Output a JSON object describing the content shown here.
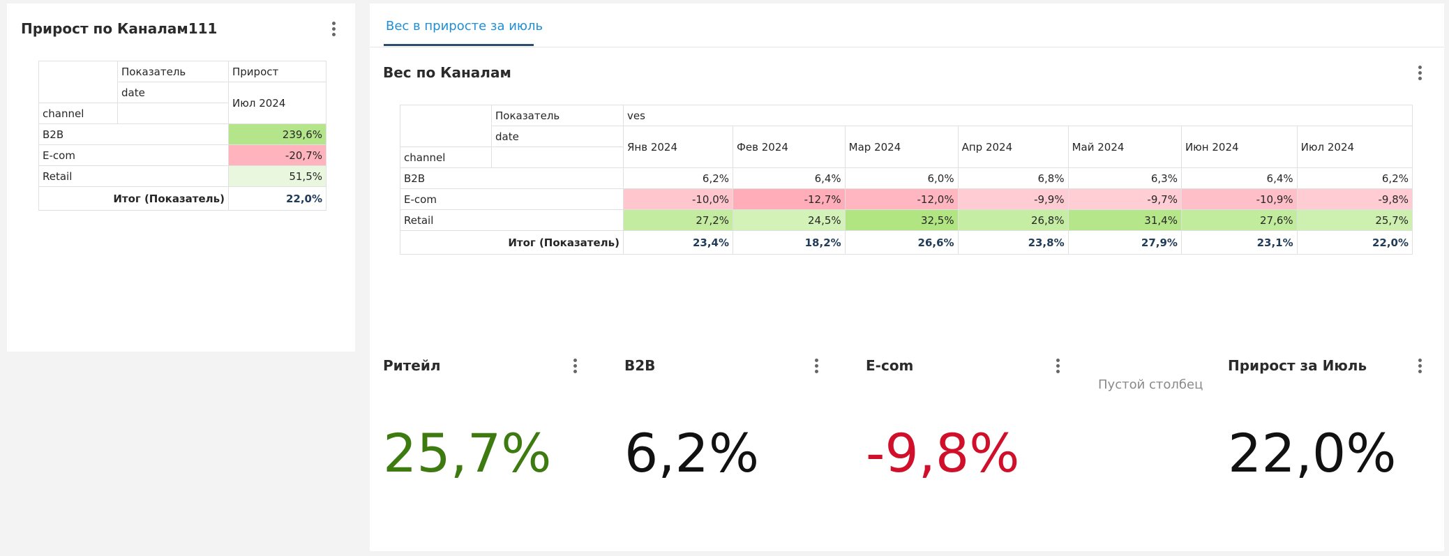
{
  "left_card": {
    "title": "Прирост по Каналам111",
    "table": {
      "h_indicator": "Показатель",
      "h_measure": "Прирост",
      "h_date": "date",
      "h_col": "Июл 2024",
      "h_channel": "channel",
      "rows": [
        {
          "label": "B2B",
          "value": "239,6%",
          "color": "#b5e58a"
        },
        {
          "label": "E-com",
          "value": "-20,7%",
          "color": "#ffb3bc"
        },
        {
          "label": "Retail",
          "value": "51,5%",
          "color": "#eaf7df"
        }
      ],
      "total_label": "Итог (Показатель)",
      "total_value": "22,0%"
    }
  },
  "tabs": {
    "active": "Вес в приросте за июль"
  },
  "weight_card": {
    "title": "Вес по Каналам",
    "table": {
      "h_indicator": "Показатель",
      "h_measure": "ves",
      "h_date": "date",
      "h_channel": "channel",
      "months": [
        "Янв 2024",
        "Фев 2024",
        "Мар 2024",
        "Апр 2024",
        "Май 2024",
        "Июн 2024",
        "Июл 2024"
      ],
      "rows": [
        {
          "label": "B2B",
          "values": [
            "6,2%",
            "6,4%",
            "6,0%",
            "6,8%",
            "6,3%",
            "6,4%",
            "6,2%"
          ],
          "colors": [
            "#ffffff",
            "#ffffff",
            "#ffffff",
            "#ffffff",
            "#ffffff",
            "#ffffff",
            "#ffffff"
          ]
        },
        {
          "label": "E-com",
          "values": [
            "-10,0%",
            "-12,7%",
            "-12,0%",
            "-9,9%",
            "-9,7%",
            "-10,9%",
            "-9,8%"
          ],
          "colors": [
            "#ffc6ce",
            "#ffaeb9",
            "#ffb6c0",
            "#ffccd3",
            "#ffcdd4",
            "#ffbfc8",
            "#ffccd3"
          ]
        },
        {
          "label": "Retail",
          "values": [
            "27,2%",
            "24,5%",
            "32,5%",
            "26,8%",
            "31,4%",
            "27,6%",
            "25,7%"
          ],
          "colors": [
            "#c3eca0",
            "#d3f2b8",
            "#b1e582",
            "#c6eda4",
            "#b5e68a",
            "#c1eb9d",
            "#cdefb0"
          ]
        }
      ],
      "total_label": "Итог (Показатель)",
      "totals": [
        "23,4%",
        "18,2%",
        "26,6%",
        "23,8%",
        "27,9%",
        "23,1%",
        "22,0%"
      ]
    }
  },
  "kpis": [
    {
      "title": "Ритейл",
      "value": "25,7%",
      "color": "#3d7a0f"
    },
    {
      "title": "B2B",
      "value": "6,2%",
      "color": "#111111"
    },
    {
      "title": "E-com",
      "value": "-9,8%",
      "color": "#d0102a"
    },
    {
      "title": "Прирост за Июль",
      "value": "22,0%",
      "color": "#111111"
    }
  ],
  "empty_column": "Пустой столбец"
}
